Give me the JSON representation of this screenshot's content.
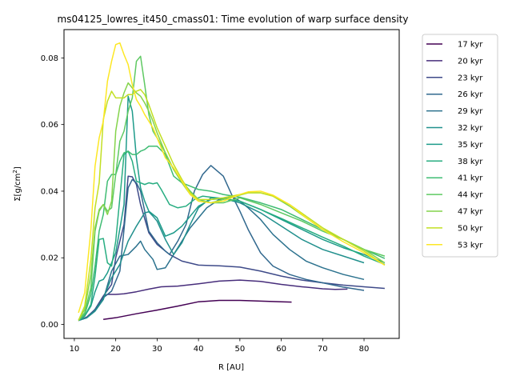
{
  "chart_data": {
    "type": "line",
    "title": "ms04125_lowres_it450_cmass01: Time evolution of warp surface density",
    "xlabel": "R [AU]",
    "ylabel_parts": {
      "prefix": "Σ[g/cm",
      "superscript": "2",
      "suffix": "]"
    },
    "xlim": [
      7.5,
      88.5
    ],
    "ylim": [
      -0.0042,
      0.0885
    ],
    "xticks": [
      10,
      20,
      30,
      40,
      50,
      60,
      70,
      80
    ],
    "yticks": [
      0.0,
      0.02,
      0.04,
      0.06,
      0.08
    ],
    "xtick_labels": [
      "10",
      "20",
      "30",
      "40",
      "50",
      "60",
      "70",
      "80"
    ],
    "ytick_labels": [
      "0.00",
      "0.02",
      "0.04",
      "0.06",
      "0.08"
    ],
    "grid": false,
    "legend_position": "outside-right",
    "series": [
      {
        "name": "17 kyr",
        "color": "#440154",
        "x": [
          17,
          20,
          25,
          30,
          35,
          40,
          45,
          50,
          55,
          60,
          62.5
        ],
        "y": [
          0.0015,
          0.002,
          0.0032,
          0.0043,
          0.0055,
          0.0068,
          0.0072,
          0.0072,
          0.007,
          0.0068,
          0.0067
        ]
      },
      {
        "name": "20 kyr",
        "color": "#472d7b",
        "x": [
          11,
          13,
          15,
          17,
          18,
          20,
          22,
          25,
          28,
          31,
          35,
          40,
          45,
          50,
          55,
          60,
          65,
          70,
          73,
          76
        ],
        "y": [
          0.0012,
          0.0022,
          0.0045,
          0.0085,
          0.009,
          0.009,
          0.0092,
          0.0098,
          0.0106,
          0.0113,
          0.0115,
          0.0122,
          0.013,
          0.0133,
          0.0129,
          0.012,
          0.0113,
          0.0107,
          0.0105,
          0.0106
        ]
      },
      {
        "name": "23 kyr",
        "color": "#3e4a89",
        "x": [
          11,
          13,
          15,
          17,
          19,
          20,
          22,
          23,
          24,
          25,
          26,
          28,
          30,
          33,
          36,
          40,
          45,
          50,
          55,
          60,
          65,
          70,
          75,
          80,
          85
        ],
        "y": [
          0.0012,
          0.002,
          0.0045,
          0.0085,
          0.012,
          0.02,
          0.03,
          0.0445,
          0.0443,
          0.042,
          0.036,
          0.0275,
          0.024,
          0.021,
          0.019,
          0.0178,
          0.0176,
          0.0172,
          0.016,
          0.0145,
          0.0133,
          0.0125,
          0.0118,
          0.0113,
          0.0108
        ]
      },
      {
        "name": "26 kyr",
        "color": "#31688e",
        "x": [
          11,
          13,
          15,
          17,
          19,
          21,
          23,
          24,
          25,
          26,
          27,
          28,
          30,
          32,
          33,
          35,
          37,
          39,
          41,
          43,
          46,
          48,
          50,
          52,
          55,
          58,
          62,
          66,
          70,
          75,
          80
        ],
        "y": [
          0.0012,
          0.002,
          0.0045,
          0.008,
          0.01,
          0.016,
          0.041,
          0.0435,
          0.0425,
          0.04,
          0.034,
          0.028,
          0.0245,
          0.022,
          0.021,
          0.025,
          0.03,
          0.04,
          0.045,
          0.0477,
          0.0445,
          0.039,
          0.034,
          0.0285,
          0.0215,
          0.0175,
          0.015,
          0.0135,
          0.0125,
          0.0112,
          0.0102
        ]
      },
      {
        "name": "29 kyr",
        "color": "#2c728e",
        "x": [
          11,
          13,
          15,
          17,
          19,
          21,
          23,
          25,
          26,
          27,
          28,
          29,
          30,
          32,
          34,
          36,
          38,
          40,
          42,
          45,
          48,
          50,
          52,
          55,
          58,
          62,
          66,
          70,
          75,
          80
        ],
        "y": [
          0.0012,
          0.002,
          0.004,
          0.0075,
          0.016,
          0.0205,
          0.021,
          0.0235,
          0.025,
          0.0225,
          0.021,
          0.0195,
          0.0165,
          0.017,
          0.021,
          0.025,
          0.029,
          0.032,
          0.035,
          0.0375,
          0.0385,
          0.037,
          0.035,
          0.0315,
          0.027,
          0.0225,
          0.019,
          0.017,
          0.015,
          0.0135
        ]
      },
      {
        "name": "32 kyr",
        "color": "#21908d",
        "x": [
          11,
          13,
          15,
          17,
          18,
          19,
          21,
          23,
          25,
          27,
          28,
          29,
          30,
          32,
          34,
          36,
          38,
          40,
          43,
          46,
          50,
          55,
          60,
          65,
          70,
          75,
          80
        ],
        "y": [
          0.0012,
          0.002,
          0.004,
          0.0075,
          0.011,
          0.014,
          0.018,
          0.025,
          0.0295,
          0.0335,
          0.0338,
          0.0325,
          0.031,
          0.0255,
          0.021,
          0.0245,
          0.03,
          0.035,
          0.038,
          0.0378,
          0.0365,
          0.0335,
          0.0295,
          0.0255,
          0.0225,
          0.0205,
          0.0185
        ]
      },
      {
        "name": "35 kyr",
        "color": "#1e9b8a",
        "x": [
          11,
          12.5,
          14,
          15,
          16,
          17,
          18,
          19,
          20,
          22,
          23,
          24,
          25,
          26,
          27,
          28,
          30,
          32,
          34,
          36,
          38,
          40,
          43,
          46,
          50,
          55,
          60,
          65,
          70,
          75,
          80,
          85
        ],
        "y": [
          0.0012,
          0.0025,
          0.0055,
          0.0098,
          0.013,
          0.0135,
          0.0155,
          0.0185,
          0.0215,
          0.036,
          0.0685,
          0.064,
          0.05,
          0.041,
          0.037,
          0.034,
          0.032,
          0.0265,
          0.0275,
          0.0295,
          0.0325,
          0.0355,
          0.0375,
          0.0378,
          0.037,
          0.0345,
          0.0315,
          0.0285,
          0.0255,
          0.023,
          0.021,
          0.0185
        ]
      },
      {
        "name": "38 kyr",
        "color": "#27ad81",
        "x": [
          11,
          12.5,
          14,
          15,
          16,
          17,
          18,
          19,
          20,
          21,
          22,
          23,
          24,
          25,
          26,
          27,
          28,
          29,
          30,
          31,
          33,
          35,
          37,
          39,
          41,
          43,
          46,
          50,
          55,
          60,
          65,
          70,
          75,
          80,
          85
        ],
        "y": [
          0.0012,
          0.0025,
          0.006,
          0.0145,
          0.0255,
          0.0258,
          0.0185,
          0.0175,
          0.025,
          0.038,
          0.051,
          0.052,
          0.049,
          0.043,
          0.0425,
          0.042,
          0.0425,
          0.0422,
          0.0425,
          0.0405,
          0.036,
          0.035,
          0.0355,
          0.0375,
          0.0385,
          0.0382,
          0.0378,
          0.037,
          0.0345,
          0.0318,
          0.029,
          0.0262,
          0.0235,
          0.0205,
          0.018
        ]
      },
      {
        "name": "41 kyr",
        "color": "#3fbc73",
        "x": [
          11,
          12.5,
          14,
          15,
          16,
          17,
          18,
          19,
          20,
          21,
          22,
          23,
          24,
          25,
          26,
          27,
          28,
          29,
          30,
          32,
          34,
          36,
          38,
          40,
          43,
          46,
          50,
          55,
          60,
          65,
          70,
          75,
          80,
          85
        ],
        "y": [
          0.0012,
          0.003,
          0.009,
          0.0175,
          0.028,
          0.033,
          0.043,
          0.045,
          0.045,
          0.049,
          0.0515,
          0.052,
          0.051,
          0.051,
          0.052,
          0.0525,
          0.0535,
          0.0535,
          0.0535,
          0.051,
          0.0445,
          0.0425,
          0.0415,
          0.0405,
          0.04,
          0.039,
          0.0382,
          0.0365,
          0.0345,
          0.0315,
          0.0285,
          0.0255,
          0.0225,
          0.0198
        ]
      },
      {
        "name": "44 kyr",
        "color": "#5ec962",
        "x": [
          11,
          12.5,
          14,
          15,
          16,
          17,
          18,
          19,
          20,
          21,
          22,
          23,
          24,
          25,
          26,
          27,
          28,
          29,
          30,
          32,
          34,
          36,
          38,
          40,
          43,
          46,
          50,
          55,
          60,
          65,
          70,
          75,
          80,
          85
        ],
        "y": [
          0.0012,
          0.0035,
          0.011,
          0.028,
          0.034,
          0.036,
          0.034,
          0.035,
          0.045,
          0.055,
          0.058,
          0.064,
          0.068,
          0.079,
          0.0805,
          0.072,
          0.063,
          0.058,
          0.056,
          0.0515,
          0.0465,
          0.043,
          0.04,
          0.0375,
          0.0365,
          0.0365,
          0.038,
          0.036,
          0.0335,
          0.031,
          0.028,
          0.0255,
          0.0225,
          0.0205
        ]
      },
      {
        "name": "47 kyr",
        "color": "#84d44b",
        "x": [
          11,
          12.5,
          14,
          15,
          16,
          17,
          18,
          19,
          20,
          21,
          22,
          23,
          24,
          25,
          26,
          27,
          28,
          29,
          30,
          32,
          34,
          36,
          38,
          40,
          43,
          46,
          50,
          52,
          55,
          58,
          62,
          66,
          70,
          75,
          80,
          85
        ],
        "y": [
          0.0012,
          0.0045,
          0.015,
          0.029,
          0.0345,
          0.036,
          0.033,
          0.037,
          0.058,
          0.0655,
          0.0695,
          0.0725,
          0.071,
          0.0695,
          0.0685,
          0.0665,
          0.064,
          0.061,
          0.0575,
          0.0515,
          0.0465,
          0.0425,
          0.039,
          0.037,
          0.0365,
          0.0375,
          0.0388,
          0.0395,
          0.0395,
          0.0385,
          0.0355,
          0.032,
          0.0285,
          0.0255,
          0.0225,
          0.0185
        ]
      },
      {
        "name": "50 kyr",
        "color": "#c2df23",
        "x": [
          11,
          12.5,
          14,
          15,
          16,
          17,
          18,
          19,
          20,
          21,
          22,
          23,
          24,
          25,
          26,
          27,
          28,
          29,
          30,
          32,
          34,
          36,
          38,
          40,
          43,
          46,
          50,
          52,
          55,
          58,
          62,
          66,
          70,
          75,
          80,
          85
        ],
        "y": [
          0.0012,
          0.0055,
          0.0195,
          0.035,
          0.0425,
          0.0615,
          0.067,
          0.07,
          0.068,
          0.068,
          0.068,
          0.069,
          0.069,
          0.07,
          0.0705,
          0.069,
          0.066,
          0.0625,
          0.059,
          0.0535,
          0.048,
          0.0435,
          0.0395,
          0.0375,
          0.0375,
          0.038,
          0.039,
          0.0395,
          0.0395,
          0.0385,
          0.036,
          0.0325,
          0.029,
          0.0255,
          0.022,
          0.0178
        ]
      },
      {
        "name": "53 kyr",
        "color": "#fde725",
        "x": [
          11,
          12.5,
          14,
          15,
          16,
          17,
          18,
          19,
          20,
          21,
          22,
          23,
          24,
          25,
          26,
          27,
          28,
          29,
          30,
          32,
          34,
          36,
          38,
          40,
          43,
          46,
          50,
          52,
          55,
          58,
          62,
          66,
          70,
          75,
          80,
          85
        ],
        "y": [
          0.0035,
          0.0095,
          0.0285,
          0.0475,
          0.056,
          0.061,
          0.073,
          0.079,
          0.084,
          0.0845,
          0.081,
          0.078,
          0.072,
          0.0675,
          0.0655,
          0.063,
          0.061,
          0.059,
          0.056,
          0.05,
          0.047,
          0.043,
          0.039,
          0.037,
          0.0365,
          0.037,
          0.039,
          0.0398,
          0.04,
          0.0388,
          0.036,
          0.032,
          0.0285,
          0.0248,
          0.0215,
          0.0178
        ]
      }
    ]
  }
}
